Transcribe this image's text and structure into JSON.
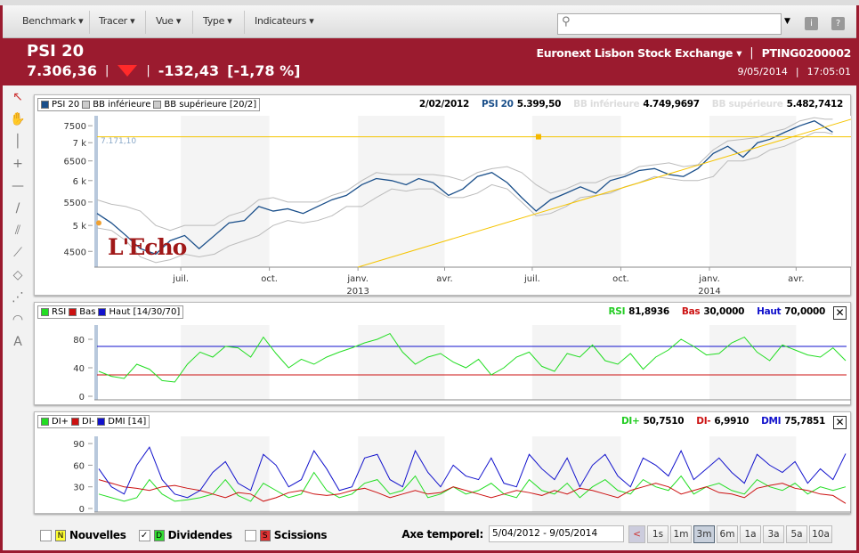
{
  "toolbar": {
    "menus": [
      "Benchmark",
      "Tracer",
      "Vue",
      "Type",
      "Indicateurs"
    ],
    "search_placeholder": "",
    "info_label": "i",
    "help_label": "?"
  },
  "header": {
    "name": "PSI 20",
    "last": "7.306,36",
    "direction": "down",
    "change": "-132,43",
    "change_pct": "[-1,78 %]",
    "exchange": "Euronext Lisbon Stock Exchange",
    "isin": "PTING0200002",
    "date": "9/05/2014",
    "time": "17:05:01",
    "down_color": "#ff2a2a"
  },
  "tools": [
    "cursor-icon",
    "hand-icon",
    "vertical-line-icon",
    "crosshair-icon",
    "horizontal-line-icon",
    "trendline-icon",
    "parallel-lines-icon",
    "segment-icon",
    "rectangle-icon",
    "fan-icon",
    "arc-icon",
    "text-icon"
  ],
  "watermark": "L'Echo",
  "price_panel": {
    "legend": [
      "PSI 20",
      "BB inférieure",
      "BB supérieure [20/2]"
    ],
    "readout": {
      "date": "2/02/2012",
      "psi_label": "PSI 20",
      "psi_value": "5.399,50",
      "bbl_label": "BB inférieure",
      "bbl_value": "4.749,9697",
      "bbu_label": "BB supérieure",
      "bbu_value": "5.482,7412"
    },
    "hline_label": "7.171,10"
  },
  "rsi_panel": {
    "legend": [
      "RSI",
      "Bas",
      "Haut [14/30/70]"
    ],
    "readout": {
      "rsi_label": "RSI",
      "rsi_value": "81,8936",
      "bas_label": "Bas",
      "bas_value": "30,0000",
      "haut_label": "Haut",
      "haut_value": "70,0000"
    },
    "close": "✕"
  },
  "dmi_panel": {
    "legend": [
      "DI+",
      "DI-",
      "DMI [14]"
    ],
    "readout": {
      "dip_label": "DI+",
      "dip_value": "50,7510",
      "dim_label": "DI-",
      "dim_value": "6,9910",
      "dmi_label": "DMI",
      "dmi_value": "75,7851"
    },
    "close": "✕"
  },
  "chart_data": [
    {
      "type": "line",
      "scale": "log",
      "ylim": [
        4220,
        7810
      ],
      "yticks": [
        "7500",
        "7 k",
        "6500",
        "6 k",
        "5500",
        "5 k",
        "4500"
      ],
      "ytick_values": [
        7500,
        7000,
        6500,
        6000,
        5500,
        5000,
        4500
      ],
      "xticks": [
        {
          "date": "2012-07-01",
          "label": "juil."
        },
        {
          "date": "2012-10-01",
          "label": "oct."
        },
        {
          "date": "2013-01-01",
          "label": "janv.",
          "year": "2013"
        },
        {
          "date": "2013-04-01",
          "label": "avr."
        },
        {
          "date": "2013-07-01",
          "label": "juil."
        },
        {
          "date": "2013-10-01",
          "label": "oct."
        },
        {
          "date": "2014-01-01",
          "label": "janv.",
          "year": "2014"
        },
        {
          "date": "2014-04-01",
          "label": "avr."
        }
      ],
      "xlim": [
        "2012-04-05",
        "2014-05-28"
      ],
      "colors": {
        "psi": "#1a4f8a",
        "bb": "#bbbbbb",
        "drawing": "#f5c400"
      },
      "horizontal_line": 7171.1,
      "trendline": [
        [
          "2013-01-01",
          4220
        ],
        [
          "2014-05-28",
          7700
        ]
      ],
      "series": [
        {
          "name": "PSI 20",
          "points": [
            [
              "2012-04-05",
              5250
            ],
            [
              "2012-04-20",
              5050
            ],
            [
              "2012-05-05",
              4800
            ],
            [
              "2012-05-20",
              4550
            ],
            [
              "2012-06-05",
              4450
            ],
            [
              "2012-06-20",
              4700
            ],
            [
              "2012-07-05",
              4800
            ],
            [
              "2012-07-20",
              4550
            ],
            [
              "2012-08-05",
              4800
            ],
            [
              "2012-08-20",
              5050
            ],
            [
              "2012-09-05",
              5100
            ],
            [
              "2012-09-20",
              5400
            ],
            [
              "2012-10-05",
              5300
            ],
            [
              "2012-10-20",
              5350
            ],
            [
              "2012-11-05",
              5250
            ],
            [
              "2012-11-20",
              5400
            ],
            [
              "2012-12-05",
              5550
            ],
            [
              "2012-12-20",
              5650
            ],
            [
              "2013-01-05",
              5900
            ],
            [
              "2013-01-20",
              6050
            ],
            [
              "2013-02-05",
              6000
            ],
            [
              "2013-02-20",
              5900
            ],
            [
              "2013-03-05",
              6050
            ],
            [
              "2013-03-20",
              5950
            ],
            [
              "2013-04-05",
              5650
            ],
            [
              "2013-04-20",
              5800
            ],
            [
              "2013-05-05",
              6100
            ],
            [
              "2013-05-20",
              6200
            ],
            [
              "2013-06-05",
              5950
            ],
            [
              "2013-06-20",
              5600
            ],
            [
              "2013-07-05",
              5300
            ],
            [
              "2013-07-20",
              5550
            ],
            [
              "2013-08-05",
              5700
            ],
            [
              "2013-08-20",
              5850
            ],
            [
              "2013-09-05",
              5700
            ],
            [
              "2013-09-20",
              6000
            ],
            [
              "2013-10-05",
              6100
            ],
            [
              "2013-10-20",
              6250
            ],
            [
              "2013-11-05",
              6300
            ],
            [
              "2013-11-20",
              6150
            ],
            [
              "2013-12-05",
              6100
            ],
            [
              "2013-12-20",
              6300
            ],
            [
              "2014-01-05",
              6700
            ],
            [
              "2014-01-20",
              6900
            ],
            [
              "2014-02-05",
              6600
            ],
            [
              "2014-02-20",
              7000
            ],
            [
              "2014-03-05",
              7100
            ],
            [
              "2014-03-20",
              7300
            ],
            [
              "2014-04-05",
              7500
            ],
            [
              "2014-04-20",
              7650
            ],
            [
              "2014-05-01",
              7450
            ],
            [
              "2014-05-09",
              7306
            ]
          ]
        },
        {
          "name": "BB inférieure",
          "values": [
            4950,
            4900,
            4700,
            4400,
            4300,
            4350,
            4450,
            4400,
            4450,
            4600,
            4700,
            4800,
            5000,
            5100,
            5050,
            5100,
            5200,
            5400,
            5400,
            5600,
            5800,
            5750,
            5800,
            5800,
            5600,
            5600,
            5700,
            5900,
            5800,
            5500,
            5200,
            5250,
            5400,
            5600,
            5650,
            5700,
            5850,
            5950,
            6100,
            6050,
            6000,
            6000,
            6100,
            6500,
            6500,
            6600,
            6800,
            6900,
            7100,
            7300,
            7300,
            7250
          ]
        },
        {
          "name": "BB supérieure",
          "values": [
            5550,
            5450,
            5400,
            5300,
            5000,
            4900,
            5000,
            5000,
            5000,
            5200,
            5300,
            5550,
            5600,
            5500,
            5500,
            5500,
            5650,
            5750,
            6000,
            6200,
            6150,
            6150,
            6150,
            6150,
            6100,
            6000,
            6200,
            6300,
            6350,
            6200,
            5900,
            5700,
            5800,
            5950,
            5950,
            6100,
            6150,
            6350,
            6400,
            6450,
            6350,
            6400,
            6800,
            7050,
            7100,
            7150,
            7300,
            7400,
            7650,
            7750,
            7700,
            7700
          ]
        }
      ]
    },
    {
      "type": "line",
      "ylim": [
        0,
        100
      ],
      "yticks": [
        80,
        40,
        0
      ],
      "levels": {
        "low": 30,
        "high": 70
      },
      "colors": {
        "rsi": "#22dd22",
        "low": "#cc1111",
        "high": "#1111cc"
      },
      "series": [
        {
          "name": "RSI",
          "values": [
            35,
            28,
            25,
            45,
            38,
            22,
            20,
            45,
            62,
            55,
            70,
            68,
            55,
            83,
            60,
            40,
            52,
            45,
            55,
            62,
            68,
            75,
            80,
            88,
            62,
            45,
            55,
            60,
            48,
            40,
            52,
            30,
            40,
            55,
            62,
            42,
            35,
            60,
            55,
            72,
            50,
            45,
            60,
            38,
            55,
            65,
            80,
            70,
            58,
            60,
            75,
            83,
            62,
            50,
            72,
            65,
            58,
            55,
            68,
            50
          ]
        }
      ]
    },
    {
      "type": "line",
      "ylim": [
        0,
        100
      ],
      "yticks": [
        90,
        60,
        30,
        0
      ],
      "colors": {
        "dip": "#22dd22",
        "dim": "#cc1111",
        "dmi": "#1111cc"
      },
      "series": [
        {
          "name": "DI+",
          "values": [
            20,
            15,
            10,
            15,
            40,
            20,
            10,
            12,
            15,
            20,
            40,
            18,
            10,
            35,
            25,
            15,
            20,
            50,
            25,
            15,
            20,
            35,
            40,
            20,
            25,
            45,
            15,
            20,
            30,
            20,
            25,
            35,
            20,
            15,
            40,
            25,
            20,
            35,
            15,
            30,
            40,
            25,
            20,
            40,
            30,
            25,
            45,
            20,
            30,
            35,
            25,
            20,
            40,
            30,
            25,
            35,
            20,
            30,
            25,
            30
          ]
        },
        {
          "name": "DI-",
          "values": [
            40,
            35,
            30,
            28,
            25,
            30,
            32,
            28,
            25,
            20,
            15,
            22,
            20,
            10,
            15,
            22,
            25,
            20,
            18,
            20,
            25,
            28,
            22,
            15,
            20,
            25,
            20,
            22,
            30,
            25,
            20,
            15,
            20,
            25,
            22,
            18,
            25,
            20,
            28,
            25,
            20,
            15,
            25,
            30,
            35,
            30,
            20,
            25,
            30,
            22,
            20,
            15,
            28,
            32,
            35,
            28,
            25,
            20,
            18,
            7
          ]
        },
        {
          "name": "DMI",
          "values": [
            55,
            30,
            20,
            60,
            85,
            40,
            20,
            15,
            25,
            50,
            65,
            35,
            25,
            75,
            60,
            30,
            40,
            80,
            55,
            25,
            30,
            70,
            75,
            40,
            30,
            80,
            50,
            30,
            60,
            45,
            40,
            70,
            35,
            30,
            75,
            55,
            40,
            70,
            30,
            60,
            75,
            45,
            30,
            70,
            60,
            45,
            80,
            40,
            55,
            70,
            50,
            35,
            75,
            60,
            50,
            65,
            35,
            55,
            40,
            76
          ]
        }
      ]
    }
  ],
  "bottom": {
    "filters": [
      {
        "tag": "N",
        "label": "Nouvelles",
        "checked": false,
        "color": "#ffff33"
      },
      {
        "tag": "D",
        "label": "Dividendes",
        "checked": true,
        "color": "#33dd33"
      },
      {
        "tag": "S",
        "label": "Scissions",
        "checked": false,
        "color": "#dd3333"
      }
    ],
    "check_mark": "✓",
    "axis_label": "Axe temporel:",
    "axis_value": "5/04/2012 - 9/05/2014",
    "prev": "<",
    "periods": [
      "1s",
      "1m",
      "3m",
      "6m",
      "1a",
      "3a",
      "5a",
      "10a"
    ],
    "active_period": "3m"
  }
}
